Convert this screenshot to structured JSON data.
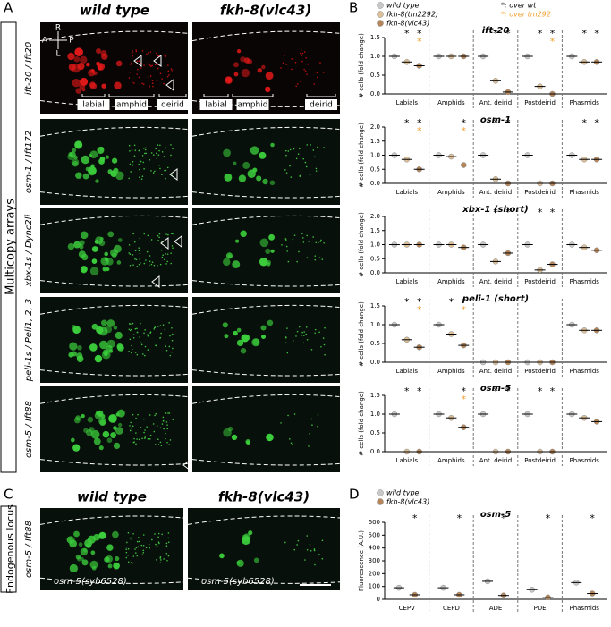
{
  "panels": [
    "A",
    "B",
    "C",
    "D"
  ],
  "panel_a": {
    "headers": [
      "wild type",
      "fkh-8(vlc43)"
    ],
    "group_label": "Multicopy arrays",
    "rows": [
      "ift-20 / Ift20",
      "osm-1 / Ift172",
      "xbx-1s / Dync2li",
      "peli-1s / Peli1, 2, 3",
      "osm-5 / Ift88"
    ],
    "compass": [
      "R",
      "A",
      "P",
      "L"
    ],
    "regions": [
      "labial",
      "amphid",
      "deirid",
      "labial",
      "amphid",
      "deirid"
    ]
  },
  "panel_c": {
    "headers": [
      "wild type",
      "fkh-8(vlc43)"
    ],
    "group_label": "Endogenous locus",
    "row": "osm-5 / Ift88",
    "strain_labels": [
      "osm-5(syb6528)",
      "osm-5(syb6528)"
    ]
  },
  "legend_b": [
    {
      "text": "*: over wt",
      "color": "#000000"
    },
    {
      "text": "*: over tm292",
      "color": "#f0a030"
    }
  ],
  "chart_data": [
    {
      "type": "dot",
      "title": "ift-20",
      "ylabel": "# cells (fold change)",
      "legend": true,
      "categories": [
        "Labials",
        "Amphids",
        "Ant. deirid",
        "Postdeirid",
        "Phasmids"
      ],
      "ylim": [
        0,
        1.5
      ],
      "yticks": [
        {
          "value": 0,
          "label": "0.0"
        },
        0.5,
        {
          "value": 1,
          "label": "1.0"
        },
        1.5
      ],
      "series": [
        {
          "name": "wild type",
          "color": "#c8c8c8",
          "values": [
            1,
            1,
            1,
            1,
            1
          ]
        },
        {
          "name": "fkh-8(tm2292)",
          "color": "#dcbf98",
          "values": [
            0.85,
            1,
            0.35,
            0.2,
            0.85
          ],
          "stars": [
            "*",
            null,
            "*",
            "*",
            "*"
          ]
        },
        {
          "name": "fkh-8(vlc43)",
          "color": "#b5865a",
          "values": [
            0.75,
            1,
            0.05,
            0,
            0.85
          ],
          "stars": [
            "*",
            null,
            "*",
            "*",
            "*"
          ],
          "stars_tm": [
            "*",
            null,
            null,
            "*",
            null
          ]
        }
      ]
    },
    {
      "type": "dot",
      "title": "osm-1",
      "ylabel": "# cells (fold change)",
      "categories": [
        "Labials",
        "Amphids",
        "Ant. deirid",
        "Postdeirid",
        "Phasmids"
      ],
      "ylim": [
        0,
        2
      ],
      "yticks": [
        {
          "value": 0,
          "label": "0.0"
        },
        0.5,
        {
          "value": 1,
          "label": "1.0"
        },
        1.5,
        {
          "value": 2,
          "label": "2.0"
        }
      ],
      "series": [
        {
          "color": "#c8c8c8",
          "values": [
            1,
            1,
            1,
            1,
            1
          ]
        },
        {
          "color": "#dcbf98",
          "values": [
            0.85,
            0.95,
            0.15,
            0,
            0.85
          ],
          "stars": [
            "*",
            null,
            "*",
            null,
            "*"
          ]
        },
        {
          "color": "#b5865a",
          "values": [
            0.5,
            0.65,
            0,
            0,
            0.85
          ],
          "stars": [
            "*",
            "*",
            "*",
            null,
            "*"
          ],
          "stars_tm": [
            "*",
            "*",
            null,
            null,
            null
          ]
        }
      ]
    },
    {
      "type": "dot",
      "title": "xbx-1 (short)",
      "ylabel": "# cells (fold change)",
      "categories": [
        "Labials",
        "Amphids",
        "Ant. deirid",
        "Postdeirid",
        "Phasmids"
      ],
      "ylim": [
        0,
        2
      ],
      "yticks": [
        {
          "value": 0,
          "label": "0.0"
        },
        0.5,
        {
          "value": 1,
          "label": "1.0"
        },
        1.5,
        {
          "value": 2,
          "label": "2.0"
        }
      ],
      "series": [
        {
          "color": "#c8c8c8",
          "values": [
            1,
            1,
            1,
            1,
            1
          ]
        },
        {
          "color": "#dcbf98",
          "values": [
            1,
            1,
            0.4,
            0.1,
            0.9
          ],
          "stars": [
            null,
            null,
            "*",
            "*",
            null
          ]
        },
        {
          "color": "#b5865a",
          "values": [
            1,
            0.9,
            0.7,
            0.3,
            0.8
          ],
          "stars": [
            null,
            null,
            "*",
            "*",
            null
          ]
        }
      ]
    },
    {
      "type": "dot",
      "title": "peli-1 (short)",
      "ylabel": "# cells (fold change)",
      "categories": [
        "Labials",
        "Amphids",
        "Ant. deirid",
        "Postdeirid",
        "Phasmids"
      ],
      "ylim": [
        0,
        1.5
      ],
      "yticks": [
        {
          "value": 0,
          "label": "0.0"
        },
        0.5,
        {
          "value": 1,
          "label": "1.0"
        },
        1.5
      ],
      "series": [
        {
          "color": "#c8c8c8",
          "values": [
            1,
            1,
            0,
            0,
            1
          ]
        },
        {
          "color": "#dcbf98",
          "values": [
            0.6,
            0.75,
            0,
            0,
            0.85
          ],
          "stars": [
            "*",
            "*",
            null,
            null,
            null
          ]
        },
        {
          "color": "#b5865a",
          "values": [
            0.4,
            0.45,
            0,
            0,
            0.85
          ],
          "stars": [
            "*",
            "*",
            null,
            null,
            null
          ],
          "stars_tm": [
            "*",
            "*",
            null,
            null,
            null
          ]
        }
      ]
    },
    {
      "type": "dot",
      "title": "osm-5",
      "ylabel": "# cells (fold change)",
      "categories": [
        "Labials",
        "Amphids",
        "Ant. deirid",
        "Postdeirid",
        "Phasmids"
      ],
      "ylim": [
        0,
        1.5
      ],
      "yticks": [
        {
          "value": 0,
          "label": "0.0"
        },
        0.5,
        {
          "value": 1,
          "label": "1.0"
        },
        1.5
      ],
      "series": [
        {
          "color": "#c8c8c8",
          "values": [
            1,
            1,
            1,
            1,
            1
          ]
        },
        {
          "color": "#dcbf98",
          "values": [
            0,
            0.9,
            0,
            0,
            0.9
          ],
          "stars": [
            "*",
            null,
            "*",
            "*",
            null
          ]
        },
        {
          "color": "#b5865a",
          "values": [
            0,
            0.65,
            0,
            0,
            0.8
          ],
          "stars": [
            "*",
            "*",
            "*",
            "*",
            null
          ],
          "stars_tm": [
            null,
            "*",
            null,
            null,
            null
          ]
        }
      ]
    },
    {
      "type": "dot",
      "title": "osm-5",
      "ylabel": "Fluorescence (A.U.)",
      "legend": true,
      "categories": [
        "CEPV",
        "CEPD",
        "ADE",
        "PDE",
        "Phasmids"
      ],
      "ylim": [
        0,
        600
      ],
      "yticks": [
        0,
        100,
        200,
        300,
        400,
        500,
        600
      ],
      "series": [
        {
          "name": "wild type",
          "color": "#c8c8c8",
          "values": [
            90,
            90,
            140,
            75,
            130
          ]
        },
        {
          "name": "fkh-8(vlc43)",
          "color": "#b5865a",
          "values": [
            35,
            35,
            30,
            15,
            45
          ],
          "stars": [
            "*",
            "*",
            "*",
            "*",
            "*"
          ]
        }
      ]
    }
  ]
}
